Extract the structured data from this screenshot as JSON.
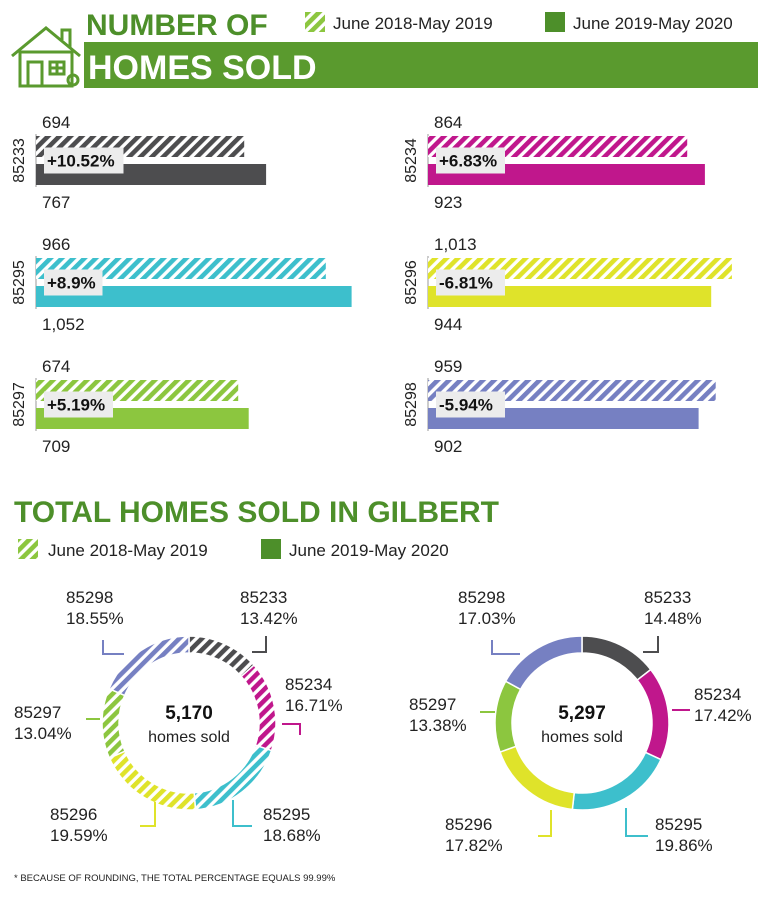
{
  "header": {
    "title_line1": "NUMBER OF",
    "title_line2": "HOMES SOLD",
    "icon": "house-icon"
  },
  "legend": {
    "period1": "June 2018-May 2019",
    "period2": "June 2019-May 2020"
  },
  "total_title": "TOTAL HOMES SOLD IN GILBERT",
  "footnote": "* BECAUSE OF ROUNDING, THE TOTAL PERCENTAGE EQUALS 99.99%",
  "colors": {
    "header_green": "#5a9a2e",
    "title_green": "#4d8f2a",
    "85233": "#4d4d4f",
    "85234": "#c0178c",
    "85295": "#3dbfcc",
    "85296": "#dfe32a",
    "85297": "#8cc63f",
    "85298": "#7680c2"
  },
  "chart_data": [
    {
      "type": "bar",
      "title": "NUMBER OF HOMES SOLD",
      "series": [
        {
          "name": "June 2018-May 2019",
          "style": "hatched"
        },
        {
          "name": "June 2019-May 2020",
          "style": "solid"
        }
      ],
      "groups": [
        {
          "zip": "85233",
          "v1": 694,
          "v2": 767,
          "v1_label": "694",
          "v2_label": "767",
          "change": "+10.52%"
        },
        {
          "zip": "85234",
          "v1": 864,
          "v2": 923,
          "v1_label": "864",
          "v2_label": "923",
          "change": "+6.83%"
        },
        {
          "zip": "85295",
          "v1": 966,
          "v2": 1052,
          "v1_label": "966",
          "v2_label": "1,052",
          "change": "+8.9%"
        },
        {
          "zip": "85296",
          "v1": 1013,
          "v2": 944,
          "v1_label": "1,013",
          "v2_label": "944",
          "change": "-6.81%"
        },
        {
          "zip": "85297",
          "v1": 674,
          "v2": 709,
          "v1_label": "674",
          "v2_label": "709",
          "change": "+5.19%"
        },
        {
          "zip": "85298",
          "v1": 959,
          "v2": 902,
          "v1_label": "959",
          "v2_label": "902",
          "change": "-5.94%"
        }
      ]
    },
    {
      "type": "pie",
      "title": "TOTAL HOMES SOLD IN GILBERT",
      "period": "June 2018-May 2019",
      "style": "hatched",
      "center_value": "5,170",
      "center_text": "homes sold",
      "slices": [
        {
          "zip": "85233",
          "pct": 13.42,
          "pct_label": "13.42%"
        },
        {
          "zip": "85234",
          "pct": 16.71,
          "pct_label": "16.71%"
        },
        {
          "zip": "85295",
          "pct": 18.68,
          "pct_label": "18.68%"
        },
        {
          "zip": "85296",
          "pct": 19.59,
          "pct_label": "19.59%"
        },
        {
          "zip": "85297",
          "pct": 13.04,
          "pct_label": "13.04%"
        },
        {
          "zip": "85298",
          "pct": 18.55,
          "pct_label": "18.55%"
        }
      ]
    },
    {
      "type": "pie",
      "title": "TOTAL HOMES SOLD IN GILBERT",
      "period": "June 2019-May 2020",
      "style": "solid",
      "center_value": "5,297",
      "center_text": "homes sold",
      "slices": [
        {
          "zip": "85233",
          "pct": 14.48,
          "pct_label": "14.48%"
        },
        {
          "zip": "85234",
          "pct": 17.42,
          "pct_label": "17.42%"
        },
        {
          "zip": "85295",
          "pct": 19.86,
          "pct_label": "19.86%"
        },
        {
          "zip": "85296",
          "pct": 17.82,
          "pct_label": "17.82%"
        },
        {
          "zip": "85297",
          "pct": 13.38,
          "pct_label": "13.38%"
        },
        {
          "zip": "85298",
          "pct": 17.03,
          "pct_label": "17.03%"
        }
      ]
    }
  ]
}
